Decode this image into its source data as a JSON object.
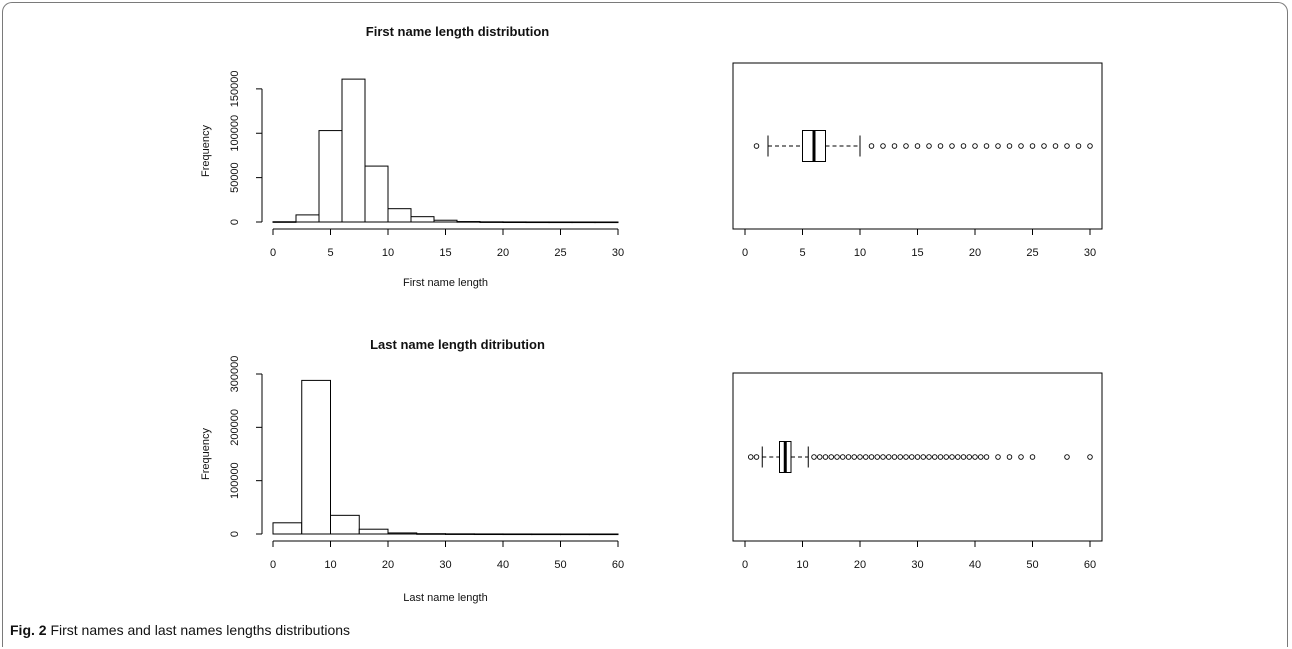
{
  "caption": {
    "label": "Fig. 2",
    "text": "First names and last names lengths distributions"
  },
  "chart_data": [
    {
      "id": "first-hist",
      "type": "bar",
      "title": "First name length distribution",
      "xlabel": "First name length",
      "ylabel": "Frequency",
      "xlim": [
        0,
        30
      ],
      "ylim": [
        0,
        160000
      ],
      "xticks": [
        0,
        5,
        10,
        15,
        20,
        25,
        30
      ],
      "yticks": [
        0,
        50000,
        100000,
        150000
      ],
      "bins": [
        [
          0,
          2
        ],
        [
          2,
          4
        ],
        [
          4,
          6
        ],
        [
          6,
          8
        ],
        [
          8,
          10
        ],
        [
          10,
          12
        ],
        [
          12,
          14
        ],
        [
          14,
          16
        ],
        [
          16,
          18
        ],
        [
          18,
          20
        ],
        [
          20,
          22
        ],
        [
          22,
          24
        ],
        [
          24,
          26
        ],
        [
          26,
          28
        ],
        [
          28,
          30
        ]
      ],
      "values": [
        300,
        8000,
        103000,
        161000,
        63000,
        15000,
        6000,
        2000,
        500,
        200,
        100,
        50,
        30,
        20,
        10
      ]
    },
    {
      "id": "first-box",
      "type": "boxplot",
      "xlim": [
        0,
        30
      ],
      "xticks": [
        0,
        5,
        10,
        15,
        20,
        25,
        30
      ],
      "whisker_low": 2,
      "q1": 5,
      "median": 6,
      "q3": 7,
      "whisker_high": 10,
      "outliers": [
        1,
        11,
        12,
        13,
        14,
        15,
        16,
        17,
        18,
        19,
        20,
        21,
        22,
        23,
        24,
        25,
        26,
        27,
        28,
        29,
        30
      ]
    },
    {
      "id": "last-hist",
      "type": "bar",
      "title": "Last name length ditribution",
      "xlabel": "Last name length",
      "ylabel": "Frequency",
      "xlim": [
        0,
        60
      ],
      "ylim": [
        0,
        300000
      ],
      "xticks": [
        0,
        10,
        20,
        30,
        40,
        50,
        60
      ],
      "yticks": [
        0,
        100000,
        200000,
        300000
      ],
      "bins": [
        [
          0,
          5
        ],
        [
          5,
          10
        ],
        [
          10,
          15
        ],
        [
          15,
          20
        ],
        [
          20,
          25
        ],
        [
          25,
          30
        ],
        [
          30,
          35
        ],
        [
          35,
          40
        ],
        [
          40,
          45
        ],
        [
          45,
          50
        ],
        [
          50,
          55
        ],
        [
          55,
          60
        ]
      ],
      "values": [
        21000,
        288000,
        35000,
        9000,
        2000,
        600,
        300,
        150,
        80,
        40,
        20,
        10
      ]
    },
    {
      "id": "last-box",
      "type": "boxplot",
      "xlim": [
        0,
        60
      ],
      "xticks": [
        0,
        10,
        20,
        30,
        40,
        50,
        60
      ],
      "whisker_low": 3,
      "q1": 6,
      "median": 7,
      "q3": 8,
      "whisker_high": 11,
      "outliers": [
        1,
        2,
        12,
        13,
        14,
        15,
        16,
        17,
        18,
        19,
        20,
        21,
        22,
        23,
        24,
        25,
        26,
        27,
        28,
        29,
        30,
        31,
        32,
        33,
        34,
        35,
        36,
        37,
        38,
        39,
        40,
        41,
        42,
        44,
        46,
        48,
        50,
        56,
        60
      ]
    }
  ]
}
